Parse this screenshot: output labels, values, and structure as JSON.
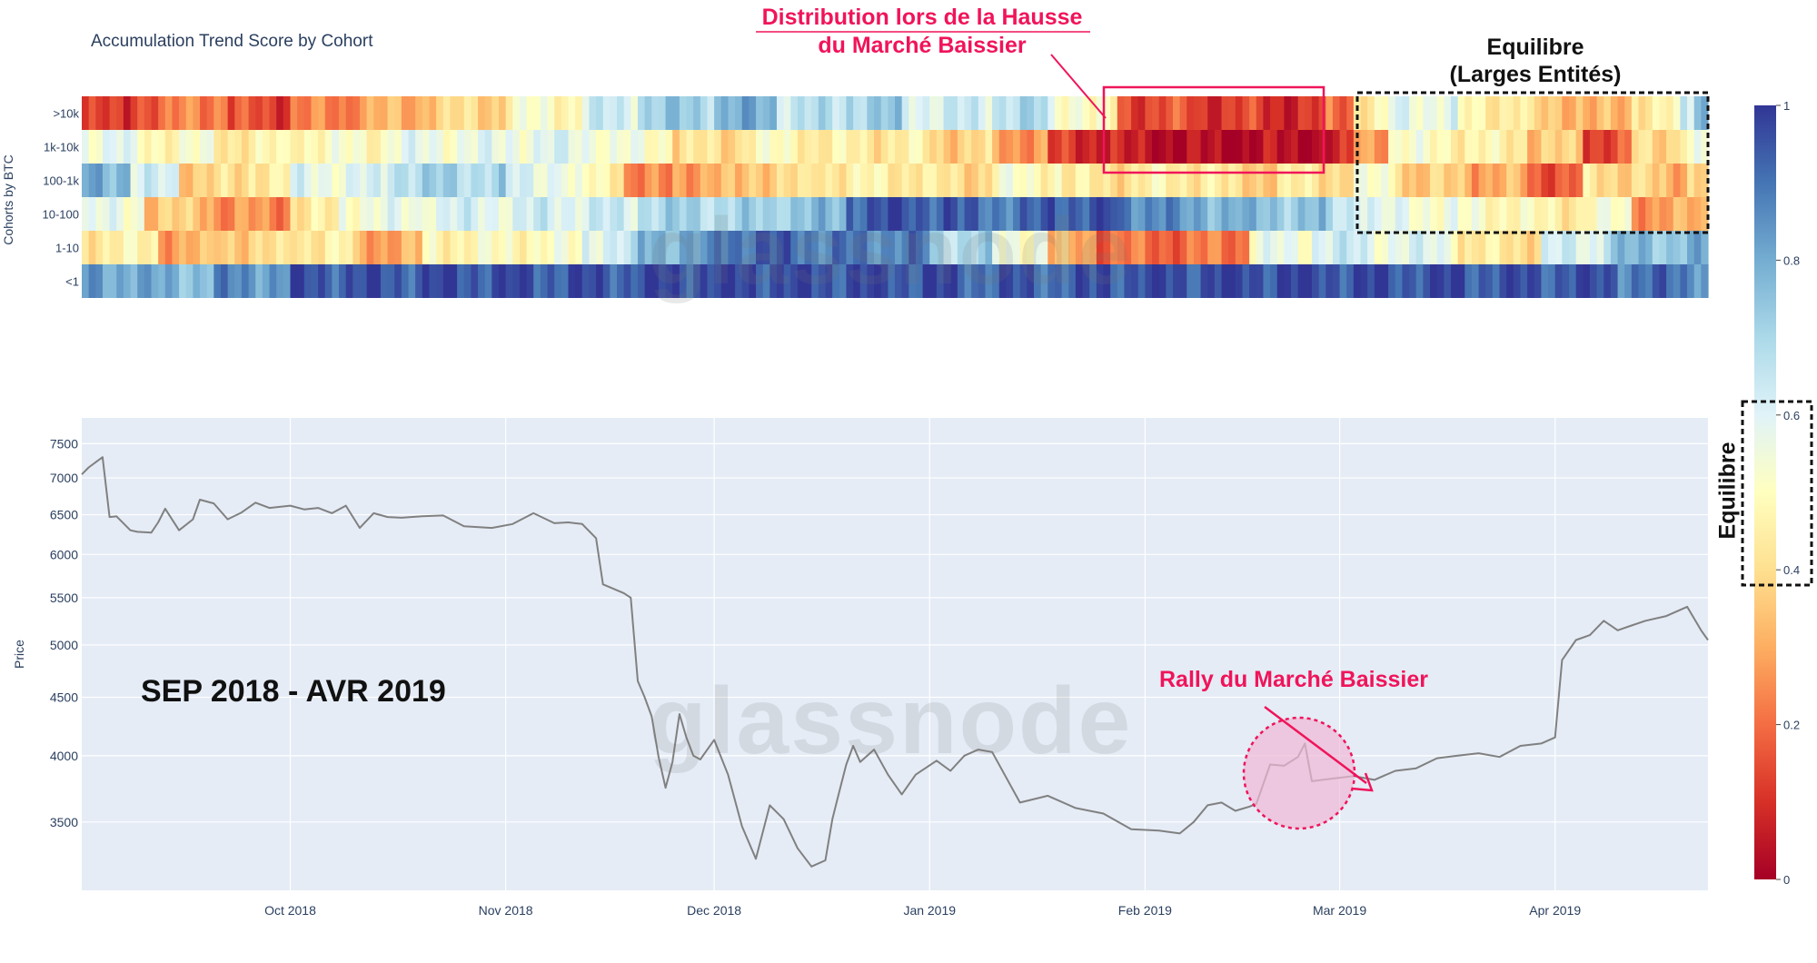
{
  "title": "Accumulation Trend Score by Cohort",
  "watermark": "glassnode",
  "annotations": {
    "distribution": [
      "Distribution lors de la Hausse",
      "du Marché Baissier"
    ],
    "equilibre_top": [
      "Equilibre",
      "(Larges Entités)"
    ],
    "equilibre_side": "Equilibre",
    "period": "SEP 2018 - AVR 2019",
    "rally": "Rally du Marché Baissier"
  },
  "colors": {
    "plot_bg": "#e5ecf6",
    "grid": "#ffffff",
    "axis_text": "#2a3f5f",
    "price_line": "#808080",
    "annotation_pink": "#f0145a",
    "rally_fill": "#f0b8d6"
  },
  "chart_data": [
    {
      "type": "heatmap",
      "colorscale": "RdYlBu",
      "zrange": [
        0,
        1
      ],
      "ylabel": "Cohorts by BTC",
      "cohorts": [
        ">10k",
        "1k-10k",
        "100-1k",
        "10-100",
        "1-10",
        "<1"
      ],
      "colorbar_ticks": [
        0,
        0.2,
        0.4,
        0.6,
        0.8,
        1
      ],
      "colorbar_ticklabels": [
        "0",
        "0.2",
        "0.4",
        "0.6",
        "0.8",
        "1"
      ],
      "x_range": [
        "2018-09-01",
        "2019-04-23"
      ],
      "segments": {
        ">10k": [
          [
            "2018-09-01",
            0.1
          ],
          [
            "2018-09-08",
            0.18
          ],
          [
            "2018-09-15",
            0.25
          ],
          [
            "2018-09-22",
            0.14
          ],
          [
            "2018-10-01",
            0.22
          ],
          [
            "2018-10-10",
            0.3
          ],
          [
            "2018-10-20",
            0.38
          ],
          [
            "2018-11-01",
            0.5
          ],
          [
            "2018-11-12",
            0.62
          ],
          [
            "2018-11-20",
            0.72
          ],
          [
            "2018-12-01",
            0.78
          ],
          [
            "2018-12-10",
            0.66
          ],
          [
            "2018-12-20",
            0.72
          ],
          [
            "2018-12-28",
            0.62
          ],
          [
            "2019-01-10",
            0.68
          ],
          [
            "2019-01-18",
            0.55
          ],
          [
            "2019-01-24",
            0.46
          ],
          [
            "2019-01-28",
            0.15
          ],
          [
            "2019-02-08",
            0.12
          ],
          [
            "2019-02-18",
            0.1
          ],
          [
            "2019-02-27",
            0.2
          ],
          [
            "2019-03-03",
            0.45
          ],
          [
            "2019-03-08",
            0.58
          ],
          [
            "2019-03-18",
            0.46
          ],
          [
            "2019-03-28",
            0.35
          ],
          [
            "2019-04-05",
            0.3
          ],
          [
            "2019-04-12",
            0.46
          ],
          [
            "2019-04-19",
            0.6
          ],
          [
            "2019-04-21",
            0.8
          ]
        ],
        "1k-10k": [
          [
            "2018-09-01",
            0.58
          ],
          [
            "2018-09-08",
            0.5
          ],
          [
            "2018-09-20",
            0.45
          ],
          [
            "2018-10-01",
            0.5
          ],
          [
            "2018-10-15",
            0.56
          ],
          [
            "2018-11-01",
            0.58
          ],
          [
            "2018-11-15",
            0.52
          ],
          [
            "2018-11-25",
            0.4
          ],
          [
            "2018-12-05",
            0.48
          ],
          [
            "2018-12-15",
            0.44
          ],
          [
            "2019-01-01",
            0.38
          ],
          [
            "2019-01-10",
            0.28
          ],
          [
            "2019-01-18",
            0.1
          ],
          [
            "2019-01-28",
            0.04
          ],
          [
            "2019-02-05",
            0.02
          ],
          [
            "2019-02-15",
            0.03
          ],
          [
            "2019-02-27",
            0.06
          ],
          [
            "2019-03-03",
            0.3
          ],
          [
            "2019-03-08",
            0.5
          ],
          [
            "2019-03-18",
            0.45
          ],
          [
            "2019-03-28",
            0.35
          ],
          [
            "2019-04-05",
            0.15
          ],
          [
            "2019-04-12",
            0.4
          ],
          [
            "2019-04-19",
            0.5
          ]
        ],
        "100-1k": [
          [
            "2018-09-01",
            0.8
          ],
          [
            "2018-09-08",
            0.6
          ],
          [
            "2018-09-15",
            0.38
          ],
          [
            "2018-09-25",
            0.46
          ],
          [
            "2018-10-01",
            0.58
          ],
          [
            "2018-10-15",
            0.7
          ],
          [
            "2018-11-01",
            0.6
          ],
          [
            "2018-11-10",
            0.48
          ],
          [
            "2018-11-18",
            0.22
          ],
          [
            "2018-11-25",
            0.3
          ],
          [
            "2018-12-05",
            0.38
          ],
          [
            "2018-12-15",
            0.45
          ],
          [
            "2019-01-01",
            0.4
          ],
          [
            "2019-01-10",
            0.5
          ],
          [
            "2019-01-20",
            0.42
          ],
          [
            "2019-02-01",
            0.45
          ],
          [
            "2019-02-12",
            0.38
          ],
          [
            "2019-02-20",
            0.42
          ],
          [
            "2019-03-03",
            0.5
          ],
          [
            "2019-03-10",
            0.35
          ],
          [
            "2019-03-20",
            0.3
          ],
          [
            "2019-03-28",
            0.18
          ],
          [
            "2019-04-05",
            0.4
          ],
          [
            "2019-04-15",
            0.3
          ],
          [
            "2019-04-20",
            0.42
          ]
        ],
        "10-100": [
          [
            "2018-09-01",
            0.55
          ],
          [
            "2018-09-10",
            0.35
          ],
          [
            "2018-09-20",
            0.25
          ],
          [
            "2018-10-01",
            0.42
          ],
          [
            "2018-10-08",
            0.55
          ],
          [
            "2018-10-20",
            0.6
          ],
          [
            "2018-11-05",
            0.62
          ],
          [
            "2018-11-20",
            0.7
          ],
          [
            "2018-12-10",
            0.75
          ],
          [
            "2018-12-20",
            0.95
          ],
          [
            "2019-01-05",
            0.9
          ],
          [
            "2019-01-18",
            0.95
          ],
          [
            "2019-01-28",
            0.88
          ],
          [
            "2019-02-05",
            0.8
          ],
          [
            "2019-02-15",
            0.75
          ],
          [
            "2019-02-27",
            0.65
          ],
          [
            "2019-03-06",
            0.55
          ],
          [
            "2019-03-18",
            0.5
          ],
          [
            "2019-03-28",
            0.45
          ],
          [
            "2019-04-05",
            0.5
          ],
          [
            "2019-04-12",
            0.28
          ],
          [
            "2019-04-20",
            0.3
          ]
        ],
        "1-10": [
          [
            "2018-09-01",
            0.45
          ],
          [
            "2018-09-12",
            0.3
          ],
          [
            "2018-09-20",
            0.38
          ],
          [
            "2018-10-01",
            0.45
          ],
          [
            "2018-10-10",
            0.3
          ],
          [
            "2018-10-20",
            0.48
          ],
          [
            "2018-11-01",
            0.5
          ],
          [
            "2018-11-12",
            0.62
          ],
          [
            "2018-11-20",
            0.8
          ],
          [
            "2018-12-01",
            0.92
          ],
          [
            "2018-12-15",
            0.88
          ],
          [
            "2019-01-01",
            0.7
          ],
          [
            "2019-01-10",
            0.55
          ],
          [
            "2019-01-18",
            0.3
          ],
          [
            "2019-01-25",
            0.2
          ],
          [
            "2019-02-10",
            0.22
          ],
          [
            "2019-02-16",
            0.55
          ],
          [
            "2019-02-25",
            0.62
          ],
          [
            "2019-03-05",
            0.58
          ],
          [
            "2019-03-18",
            0.42
          ],
          [
            "2019-03-30",
            0.6
          ],
          [
            "2019-04-08",
            0.75
          ],
          [
            "2019-04-18",
            0.78
          ]
        ],
        "<1": [
          [
            "2018-09-01",
            0.82
          ],
          [
            "2018-09-10",
            0.78
          ],
          [
            "2018-09-20",
            0.85
          ],
          [
            "2018-10-01",
            0.95
          ],
          [
            "2018-10-20",
            0.96
          ],
          [
            "2018-11-05",
            0.95
          ],
          [
            "2018-11-20",
            0.97
          ],
          [
            "2018-12-10",
            0.96
          ],
          [
            "2019-01-05",
            0.93
          ],
          [
            "2019-01-25",
            0.96
          ],
          [
            "2019-02-10",
            0.97
          ],
          [
            "2019-03-01",
            0.96
          ],
          [
            "2019-03-20",
            0.95
          ],
          [
            "2019-04-10",
            0.9
          ],
          [
            "2019-04-20",
            0.88
          ]
        ]
      }
    },
    {
      "type": "line",
      "ylabel": "Price",
      "yscale": "log",
      "ylim": [
        3050,
        7900
      ],
      "yticks": [
        3500,
        4000,
        4500,
        5000,
        5500,
        6000,
        6500,
        7000,
        7500
      ],
      "x_range": [
        "2018-09-01",
        "2019-04-23"
      ],
      "xticks": [
        "2018-10-01",
        "2018-11-01",
        "2018-12-01",
        "2019-01-01",
        "2019-02-01",
        "2019-03-01",
        "2019-04-01"
      ],
      "xticklabels": [
        "Oct 2018",
        "Nov 2018",
        "Dec 2018",
        "Jan 2019",
        "Feb 2019",
        "Mar 2019",
        "Apr 2019"
      ],
      "x": [
        "2018-09-01",
        "2018-09-02",
        "2018-09-04",
        "2018-09-05",
        "2018-09-06",
        "2018-09-08",
        "2018-09-09",
        "2018-09-11",
        "2018-09-12",
        "2018-09-13",
        "2018-09-15",
        "2018-09-17",
        "2018-09-18",
        "2018-09-20",
        "2018-09-22",
        "2018-09-24",
        "2018-09-26",
        "2018-09-28",
        "2018-10-01",
        "2018-10-03",
        "2018-10-05",
        "2018-10-07",
        "2018-10-09",
        "2018-10-11",
        "2018-10-13",
        "2018-10-15",
        "2018-10-17",
        "2018-10-20",
        "2018-10-23",
        "2018-10-26",
        "2018-10-30",
        "2018-11-02",
        "2018-11-05",
        "2018-11-08",
        "2018-11-10",
        "2018-11-12",
        "2018-11-14",
        "2018-11-15",
        "2018-11-18",
        "2018-11-19",
        "2018-11-20",
        "2018-11-21",
        "2018-11-22",
        "2018-11-23",
        "2018-11-24",
        "2018-11-25",
        "2018-11-26",
        "2018-11-27",
        "2018-11-28",
        "2018-11-29",
        "2018-12-01",
        "2018-12-03",
        "2018-12-05",
        "2018-12-07",
        "2018-12-09",
        "2018-12-11",
        "2018-12-13",
        "2018-12-15",
        "2018-12-17",
        "2018-12-18",
        "2018-12-19",
        "2018-12-20",
        "2018-12-21",
        "2018-12-22",
        "2018-12-24",
        "2018-12-26",
        "2018-12-28",
        "2018-12-30",
        "2019-01-02",
        "2019-01-04",
        "2019-01-06",
        "2019-01-08",
        "2019-01-10",
        "2019-01-14",
        "2019-01-18",
        "2019-01-22",
        "2019-01-26",
        "2019-01-30",
        "2019-02-03",
        "2019-02-06",
        "2019-02-08",
        "2019-02-10",
        "2019-02-12",
        "2019-02-14",
        "2019-02-16",
        "2019-02-17",
        "2019-02-19",
        "2019-02-21",
        "2019-02-23",
        "2019-02-24",
        "2019-02-25",
        "2019-02-28",
        "2019-03-03",
        "2019-03-06",
        "2019-03-09",
        "2019-03-12",
        "2019-03-15",
        "2019-03-18",
        "2019-03-21",
        "2019-03-24",
        "2019-03-27",
        "2019-03-30",
        "2019-04-01",
        "2019-04-02",
        "2019-04-04",
        "2019-04-06",
        "2019-04-08",
        "2019-04-10",
        "2019-04-12",
        "2019-04-14",
        "2019-04-17",
        "2019-04-20",
        "2019-04-22",
        "2019-04-23"
      ],
      "y": [
        7050,
        7150,
        7300,
        6470,
        6480,
        6300,
        6280,
        6270,
        6400,
        6580,
        6300,
        6440,
        6700,
        6650,
        6440,
        6530,
        6660,
        6590,
        6620,
        6570,
        6590,
        6520,
        6620,
        6330,
        6520,
        6470,
        6460,
        6480,
        6490,
        6350,
        6330,
        6380,
        6520,
        6390,
        6400,
        6380,
        6200,
        5650,
        5550,
        5500,
        4650,
        4500,
        4330,
        3990,
        3750,
        3950,
        4350,
        4150,
        4000,
        3970,
        4130,
        3850,
        3470,
        3250,
        3620,
        3520,
        3320,
        3200,
        3240,
        3520,
        3720,
        3930,
        4080,
        3950,
        4050,
        3850,
        3700,
        3850,
        3960,
        3880,
        4000,
        4050,
        4030,
        3640,
        3690,
        3600,
        3560,
        3450,
        3440,
        3420,
        3500,
        3620,
        3640,
        3580,
        3610,
        3630,
        3930,
        3920,
        3990,
        4100,
        3800,
        3820,
        3840,
        3810,
        3880,
        3900,
        3980,
        4000,
        4020,
        3990,
        4080,
        4100,
        4150,
        4850,
        5050,
        5100,
        5250,
        5150,
        5200,
        5250,
        5300,
        5400,
        5150,
        5050
      ]
    }
  ]
}
